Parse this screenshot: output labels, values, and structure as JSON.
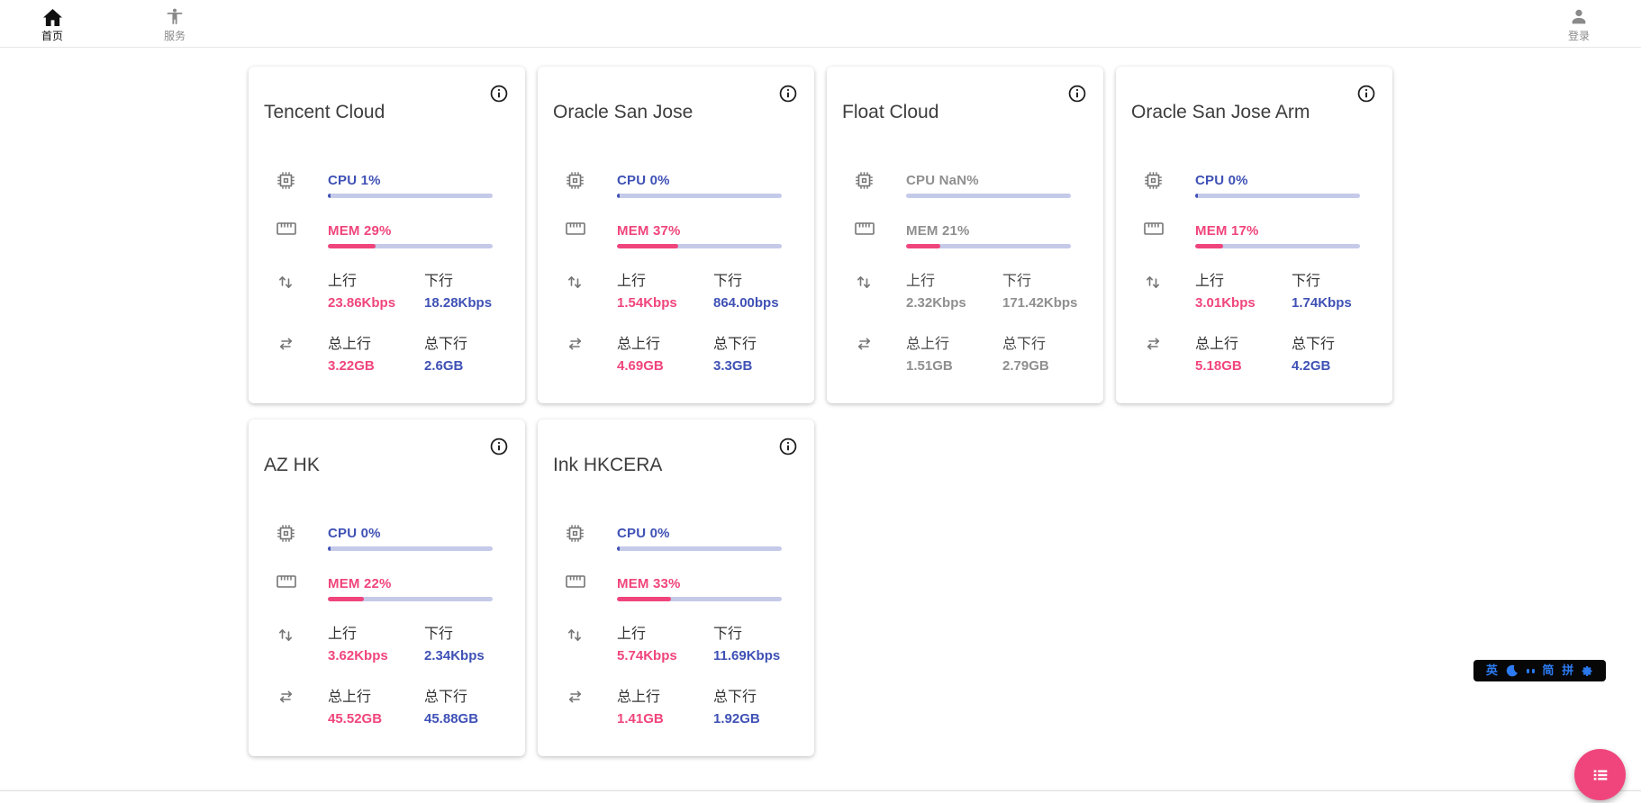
{
  "nav": {
    "home": {
      "label": "首页"
    },
    "services": {
      "label": "服务"
    },
    "login": {
      "label": "登录"
    }
  },
  "labels": {
    "up": "上行",
    "down": "下行",
    "total_up": "总上行",
    "total_down": "总下行"
  },
  "colors": {
    "cpu_accent": "#3F51B5",
    "cpu_track": "#C5CAE9",
    "mem_accent": "#F0457C",
    "offline_text": "#8f8f8f",
    "fab": "#F0457C",
    "ime_text": "#2c7bf2"
  },
  "servers": [
    {
      "name": "Tencent Cloud",
      "cpu_text": "CPU 1%",
      "cpu_pct": 1,
      "mem_text": "MEM 29%",
      "mem_pct": 29,
      "up": "23.86Kbps",
      "down": "18.28Kbps",
      "total_up": "3.22GB",
      "total_down": "2.6GB",
      "online": true
    },
    {
      "name": "Oracle San Jose",
      "cpu_text": "CPU 0%",
      "cpu_pct": 0,
      "mem_text": "MEM 37%",
      "mem_pct": 37,
      "up": "1.54Kbps",
      "down": "864.00bps",
      "total_up": "4.69GB",
      "total_down": "3.3GB",
      "online": true
    },
    {
      "name": "Float Cloud",
      "cpu_text": "CPU NaN%",
      "cpu_pct": 0,
      "mem_text": "MEM 21%",
      "mem_pct": 21,
      "up": "2.32Kbps",
      "down": "171.42Kbps",
      "total_up": "1.51GB",
      "total_down": "2.79GB",
      "online": false
    },
    {
      "name": "Oracle San Jose Arm",
      "cpu_text": "CPU 0%",
      "cpu_pct": 0,
      "mem_text": "MEM 17%",
      "mem_pct": 17,
      "up": "3.01Kbps",
      "down": "1.74Kbps",
      "total_up": "5.18GB",
      "total_down": "4.2GB",
      "online": true
    },
    {
      "name": "AZ HK",
      "cpu_text": "CPU 0%",
      "cpu_pct": 0,
      "mem_text": "MEM 22%",
      "mem_pct": 22,
      "up": "3.62Kbps",
      "down": "2.34Kbps",
      "total_up": "45.52GB",
      "total_down": "45.88GB",
      "online": true
    },
    {
      "name": "Ink HKCERA",
      "cpu_text": "CPU 0%",
      "cpu_pct": 0,
      "mem_text": "MEM 33%",
      "mem_pct": 33,
      "up": "5.74Kbps",
      "down": "11.69Kbps",
      "total_up": "1.41GB",
      "total_down": "1.92GB",
      "online": true
    }
  ],
  "ime_bar": {
    "lang": "英",
    "moon_icon": "moon-icon",
    "punct_icon": "half-width-punct-icon",
    "simplified": "简",
    "pinyin": "拼",
    "gear_icon": "gear-icon"
  },
  "fab": {
    "icon": "list-icon"
  }
}
